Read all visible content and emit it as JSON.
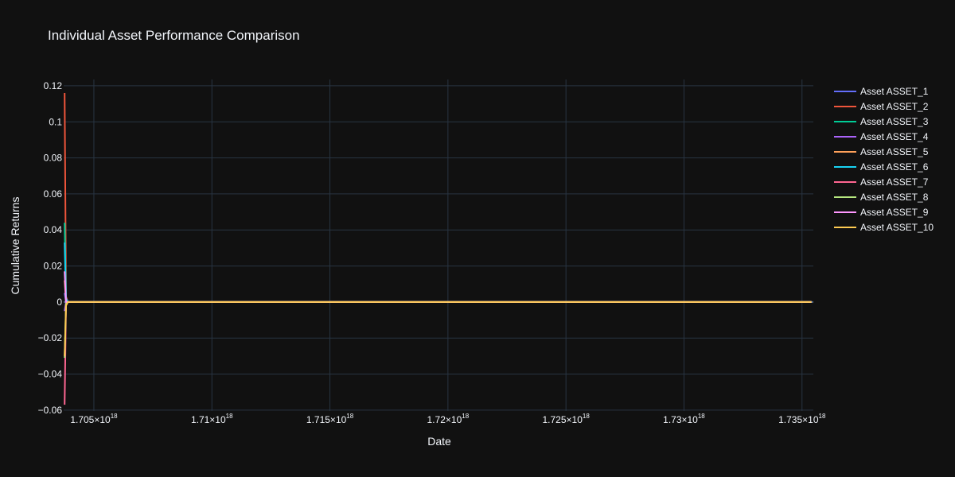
{
  "chart_data": {
    "type": "line",
    "title": "Individual Asset Performance Comparison",
    "xlabel": "Date",
    "ylabel": "Cumulative Returns",
    "xlim": [
      1.70372e+18,
      1.73548e+18
    ],
    "ylim": [
      -0.0605,
      0.1235
    ],
    "x_ticks": [
      {
        "value": 1.705e+18,
        "label": "1.705×10",
        "exp": "18"
      },
      {
        "value": 1.71e+18,
        "label": "1.71×10",
        "exp": "18"
      },
      {
        "value": 1.715e+18,
        "label": "1.715×10",
        "exp": "18"
      },
      {
        "value": 1.72e+18,
        "label": "1.72×10",
        "exp": "18"
      },
      {
        "value": 1.725e+18,
        "label": "1.725×10",
        "exp": "18"
      },
      {
        "value": 1.73e+18,
        "label": "1.73×10",
        "exp": "18"
      },
      {
        "value": 1.735e+18,
        "label": "1.735×10",
        "exp": "18"
      }
    ],
    "y_ticks": [
      {
        "value": 0.12,
        "label": "0.12"
      },
      {
        "value": 0.1,
        "label": "0.1"
      },
      {
        "value": 0.08,
        "label": "0.08"
      },
      {
        "value": 0.06,
        "label": "0.06"
      },
      {
        "value": 0.04,
        "label": "0.04"
      },
      {
        "value": 0.02,
        "label": "0.02"
      },
      {
        "value": 0,
        "label": "0"
      },
      {
        "value": -0.02,
        "label": "−0.02"
      },
      {
        "value": -0.04,
        "label": "−0.04"
      },
      {
        "value": -0.06,
        "label": "−0.06"
      }
    ],
    "grid": true,
    "legend_position": "right",
    "series": [
      {
        "name": "Asset ASSET_1",
        "color": "#636efa",
        "x": [
          1.70376e+18,
          1.70382e+18,
          1.7039e+18,
          1.705e+18,
          1.72e+18,
          1.7354e+18
        ],
        "y": [
          0.005,
          0.0,
          0.0,
          0.0,
          0.0,
          0.0
        ]
      },
      {
        "name": "Asset ASSET_2",
        "color": "#ef553b",
        "x": [
          1.70376e+18,
          1.70382e+18,
          1.7039e+18,
          1.705e+18,
          1.72e+18,
          1.7354e+18
        ],
        "y": [
          0.116,
          0.003,
          0.0,
          0.0,
          0.0,
          0.0
        ]
      },
      {
        "name": "Asset ASSET_3",
        "color": "#00cc96",
        "x": [
          1.70376e+18,
          1.70382e+18,
          1.7039e+18,
          1.705e+18,
          1.72e+18,
          1.7354e+18
        ],
        "y": [
          0.044,
          0.001,
          0.0,
          0.0,
          0.0,
          0.0
        ]
      },
      {
        "name": "Asset ASSET_4",
        "color": "#ab63fa",
        "x": [
          1.70376e+18,
          1.70382e+18,
          1.7039e+18,
          1.705e+18,
          1.72e+18,
          1.7354e+18
        ],
        "y": [
          -0.005,
          0.0,
          0.0,
          0.0,
          0.0,
          0.0
        ]
      },
      {
        "name": "Asset ASSET_5",
        "color": "#ffa15a",
        "x": [
          1.70376e+18,
          1.70382e+18,
          1.7039e+18,
          1.705e+18,
          1.72e+18,
          1.7354e+18
        ],
        "y": [
          0.012,
          0.0,
          0.0,
          0.0,
          0.0,
          0.0
        ]
      },
      {
        "name": "Asset ASSET_6",
        "color": "#19d3f3",
        "x": [
          1.70376e+18,
          1.70382e+18,
          1.7039e+18,
          1.705e+18,
          1.72e+18,
          1.7354e+18
        ],
        "y": [
          0.033,
          0.002,
          0.0,
          0.0,
          0.0,
          0.0
        ]
      },
      {
        "name": "Asset ASSET_7",
        "color": "#ff6692",
        "x": [
          1.70376e+18,
          1.70382e+18,
          1.7039e+18,
          1.705e+18,
          1.72e+18,
          1.7354e+18
        ],
        "y": [
          -0.057,
          -0.001,
          0.0,
          0.0,
          0.0,
          0.0
        ]
      },
      {
        "name": "Asset ASSET_8",
        "color": "#b6e880",
        "x": [
          1.70376e+18,
          1.70382e+18,
          1.7039e+18,
          1.705e+18,
          1.72e+18,
          1.7354e+18
        ],
        "y": [
          -0.031,
          -0.001,
          0.0,
          0.0,
          0.0,
          0.0
        ]
      },
      {
        "name": "Asset ASSET_9",
        "color": "#ff97ff",
        "x": [
          1.70376e+18,
          1.70382e+18,
          1.7039e+18,
          1.705e+18,
          1.72e+18,
          1.7354e+18
        ],
        "y": [
          0.017,
          0.0,
          0.0,
          0.0,
          0.0,
          0.0
        ]
      },
      {
        "name": "Asset ASSET_10",
        "color": "#fecb52",
        "x": [
          1.70376e+18,
          1.70382e+18,
          1.7039e+18,
          1.705e+18,
          1.72e+18,
          1.7354e+18
        ],
        "y": [
          -0.03,
          -0.002,
          0.0,
          0.0,
          0.0,
          0.0
        ]
      }
    ]
  }
}
